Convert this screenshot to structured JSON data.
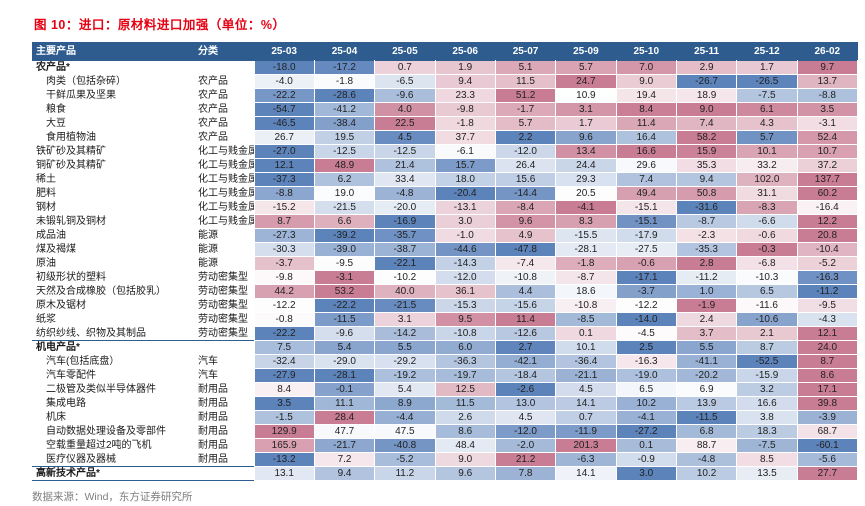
{
  "title": "图 10：进口：原材料进口加强（单位：%）",
  "footer": "数据来源：Wind，东方证券研究所",
  "colors": {
    "title_red": "#e60012",
    "header_bg": "#2e5c8f",
    "section_line": "#2e5c8f",
    "heat_negative": "#5d83bb",
    "heat_positive": "#c97d94",
    "footer_gray": "#7f7f7f"
  },
  "chart_data": {
    "type": "heatmap",
    "title": "图 10：进口：原材料进口加强（单位：%）",
    "unit": "%",
    "row_header_labels": [
      "主要产品",
      "分类"
    ],
    "columns": [
      "25-03",
      "25-04",
      "25-05",
      "25-06",
      "25-07",
      "25-09",
      "25-10",
      "25-11",
      "25-12",
      "26-02"
    ],
    "color_scale": "per-row 3-color scale: row min = blue, row midpoint = white, row max = pink",
    "rows": [
      {
        "name": "农产品*",
        "category": "",
        "bold": true,
        "indent": false,
        "section_start": true,
        "values": [
          "-18.0",
          "-17.2",
          "0.7",
          "1.9",
          "5.1",
          "5.7",
          "7.0",
          "2.9",
          "1.7",
          "9.7"
        ]
      },
      {
        "name": "肉类（包括杂碎）",
        "category": "农产品",
        "bold": false,
        "indent": true,
        "section_start": false,
        "values": [
          "-4.0",
          "-1.8",
          "-6.5",
          "9.4",
          "11.5",
          "24.7",
          "9.0",
          "-26.7",
          "-26.5",
          "13.7"
        ]
      },
      {
        "name": "干鲜瓜果及坚果",
        "category": "农产品",
        "bold": false,
        "indent": true,
        "section_start": false,
        "values": [
          "-22.2",
          "-28.6",
          "-9.6",
          "23.3",
          "51.2",
          "10.9",
          "19.4",
          "18.9",
          "-7.5",
          "-8.8"
        ]
      },
      {
        "name": "粮食",
        "category": "农产品",
        "bold": false,
        "indent": true,
        "section_start": false,
        "values": [
          "-54.7",
          "-41.2",
          "4.0",
          "-9.8",
          "-1.7",
          "3.1",
          "8.4",
          "9.0",
          "6.1",
          "3.5"
        ]
      },
      {
        "name": "大豆",
        "category": "农产品",
        "bold": false,
        "indent": true,
        "section_start": false,
        "values": [
          "-46.5",
          "-38.4",
          "22.5",
          "-1.8",
          "5.7",
          "1.7",
          "11.4",
          "7.4",
          "4.3",
          "-3.1"
        ]
      },
      {
        "name": "食用植物油",
        "category": "农产品",
        "bold": false,
        "indent": true,
        "section_start": false,
        "values": [
          "26.7",
          "19.5",
          "4.5",
          "37.7",
          "2.2",
          "9.6",
          "16.4",
          "58.2",
          "5.7",
          "52.4"
        ]
      },
      {
        "name": "铁矿砂及其精矿",
        "category": "化工与贱金属",
        "bold": false,
        "indent": false,
        "section_start": false,
        "values": [
          "-27.0",
          "-12.5",
          "-12.5",
          "-6.1",
          "-12.0",
          "13.4",
          "16.6",
          "15.9",
          "10.1",
          "10.7"
        ]
      },
      {
        "name": "铜矿砂及其精矿",
        "category": "化工与贱金属",
        "bold": false,
        "indent": false,
        "section_start": false,
        "values": [
          "12.1",
          "48.9",
          "21.4",
          "15.7",
          "26.4",
          "24.4",
          "29.6",
          "35.3",
          "33.2",
          "37.2"
        ]
      },
      {
        "name": "稀土",
        "category": "化工与贱金属",
        "bold": false,
        "indent": false,
        "section_start": false,
        "values": [
          "-37.3",
          "6.2",
          "33.4",
          "18.0",
          "15.6",
          "29.3",
          "7.4",
          "9.4",
          "102.0",
          "137.7"
        ]
      },
      {
        "name": "肥料",
        "category": "化工与贱金属",
        "bold": false,
        "indent": false,
        "section_start": false,
        "values": [
          "-8.8",
          "19.0",
          "-4.8",
          "-20.4",
          "-14.4",
          "20.5",
          "49.4",
          "50.8",
          "31.1",
          "60.2"
        ]
      },
      {
        "name": "钢材",
        "category": "化工与贱金属",
        "bold": false,
        "indent": false,
        "section_start": false,
        "values": [
          "-15.2",
          "-21.5",
          "-20.0",
          "-13.1",
          "-8.4",
          "-4.1",
          "-15.1",
          "-31.6",
          "-8.3",
          "-16.4"
        ]
      },
      {
        "name": "未锻轧铜及铜材",
        "category": "化工与贱金属",
        "bold": false,
        "indent": false,
        "section_start": false,
        "values": [
          "8.7",
          "6.6",
          "-16.9",
          "3.0",
          "9.6",
          "8.3",
          "-15.1",
          "-8.7",
          "-6.6",
          "12.2"
        ]
      },
      {
        "name": "成品油",
        "category": "能源",
        "bold": false,
        "indent": false,
        "section_start": false,
        "values": [
          "-27.3",
          "-39.2",
          "-35.7",
          "-1.0",
          "4.9",
          "-15.5",
          "-17.9",
          "-2.3",
          "-0.6",
          "20.8"
        ]
      },
      {
        "name": "煤及褐煤",
        "category": "能源",
        "bold": false,
        "indent": false,
        "section_start": false,
        "values": [
          "-30.3",
          "-39.0",
          "-38.7",
          "-44.6",
          "-47.8",
          "-28.1",
          "-27.5",
          "-35.3",
          "-0.3",
          "-10.4"
        ]
      },
      {
        "name": "原油",
        "category": "能源",
        "bold": false,
        "indent": false,
        "section_start": false,
        "values": [
          "-3.7",
          "-9.5",
          "-22.1",
          "-14.3",
          "-7.4",
          "-1.8",
          "-0.6",
          "2.8",
          "-6.8",
          "-5.2"
        ]
      },
      {
        "name": "初级形状的塑料",
        "category": "劳动密集型",
        "bold": false,
        "indent": false,
        "section_start": false,
        "values": [
          "-9.8",
          "-3.1",
          "-10.2",
          "-12.0",
          "-10.8",
          "-8.7",
          "-17.1",
          "-11.2",
          "-10.3",
          "-16.3"
        ]
      },
      {
        "name": "天然及合成橡胶（包括胶乳）",
        "category": "劳动密集型",
        "bold": false,
        "indent": false,
        "section_start": false,
        "values": [
          "44.2",
          "53.2",
          "40.0",
          "36.1",
          "4.4",
          "18.6",
          "-3.7",
          "1.0",
          "6.5",
          "-11.2"
        ]
      },
      {
        "name": "原木及锯材",
        "category": "劳动密集型",
        "bold": false,
        "indent": false,
        "section_start": false,
        "values": [
          "-12.2",
          "-22.2",
          "-21.5",
          "-15.3",
          "-15.6",
          "-10.8",
          "-12.2",
          "-1.9",
          "-11.6",
          "-9.5"
        ]
      },
      {
        "name": "纸浆",
        "category": "劳动密集型",
        "bold": false,
        "indent": false,
        "section_start": false,
        "values": [
          "-0.8",
          "-11.5",
          "3.1",
          "9.5",
          "11.4",
          "-8.5",
          "-14.0",
          "2.4",
          "-10.6",
          "-4.3"
        ]
      },
      {
        "name": "纺织纱线、织物及其制品",
        "category": "劳动密集型",
        "bold": false,
        "indent": false,
        "section_start": false,
        "values": [
          "-22.2",
          "-9.6",
          "-14.2",
          "-10.8",
          "-12.6",
          "0.1",
          "-4.5",
          "3.7",
          "2.1",
          "12.1"
        ]
      },
      {
        "name": "机电产品*",
        "category": "",
        "bold": true,
        "indent": false,
        "section_start": true,
        "values": [
          "7.5",
          "5.4",
          "5.5",
          "6.0",
          "2.7",
          "10.1",
          "2.5",
          "5.5",
          "8.7",
          "24.0"
        ]
      },
      {
        "name": "汽车(包括底盘）",
        "category": "汽车",
        "bold": false,
        "indent": true,
        "section_start": false,
        "values": [
          "-32.4",
          "-29.0",
          "-29.2",
          "-36.3",
          "-42.1",
          "-36.4",
          "-16.3",
          "-41.1",
          "-52.5",
          "8.7"
        ]
      },
      {
        "name": "汽车零配件",
        "category": "汽车",
        "bold": false,
        "indent": true,
        "section_start": false,
        "values": [
          "-27.9",
          "-28.1",
          "-19.2",
          "-19.7",
          "-18.4",
          "-21.1",
          "-19.0",
          "-20.2",
          "-15.9",
          "8.6"
        ]
      },
      {
        "name": "二极管及类似半导体器件",
        "category": "耐用品",
        "bold": false,
        "indent": true,
        "section_start": false,
        "values": [
          "8.4",
          "-0.1",
          "5.4",
          "12.5",
          "-2.6",
          "4.5",
          "6.5",
          "6.9",
          "3.2",
          "17.1"
        ]
      },
      {
        "name": "集成电路",
        "category": "耐用品",
        "bold": false,
        "indent": true,
        "section_start": false,
        "values": [
          "3.5",
          "11.1",
          "8.9",
          "11.5",
          "13.0",
          "14.1",
          "10.2",
          "13.9",
          "16.6",
          "39.8"
        ]
      },
      {
        "name": "机床",
        "category": "耐用品",
        "bold": false,
        "indent": true,
        "section_start": false,
        "values": [
          "-1.5",
          "28.4",
          "-4.4",
          "2.6",
          "4.5",
          "0.7",
          "-4.1",
          "-11.5",
          "3.8",
          "-3.9"
        ]
      },
      {
        "name": "自动数据处理设备及零部件",
        "category": "耐用品",
        "bold": false,
        "indent": true,
        "section_start": false,
        "values": [
          "129.9",
          "47.7",
          "47.5",
          "8.6",
          "-12.0",
          "-11.9",
          "-27.2",
          "6.8",
          "18.3",
          "68.7"
        ]
      },
      {
        "name": "空载重量超过2吨的飞机",
        "category": "耐用品",
        "bold": false,
        "indent": true,
        "section_start": false,
        "values": [
          "165.9",
          "-21.7",
          "-40.8",
          "48.4",
          "-2.0",
          "201.3",
          "0.1",
          "88.7",
          "-7.5",
          "-60.1"
        ]
      },
      {
        "name": "医疗仪器及器械",
        "category": "耐用品",
        "bold": false,
        "indent": true,
        "section_start": false,
        "values": [
          "-13.2",
          "7.2",
          "-5.2",
          "9.0",
          "21.2",
          "-6.3",
          "-0.9",
          "-4.8",
          "8.5",
          "-5.6"
        ]
      },
      {
        "name": "高新技术产品*",
        "category": "",
        "bold": true,
        "indent": false,
        "section_start": true,
        "values": [
          "13.1",
          "9.4",
          "11.2",
          "9.6",
          "7.8",
          "14.1",
          "3.0",
          "10.2",
          "13.5",
          "27.7"
        ]
      }
    ]
  }
}
